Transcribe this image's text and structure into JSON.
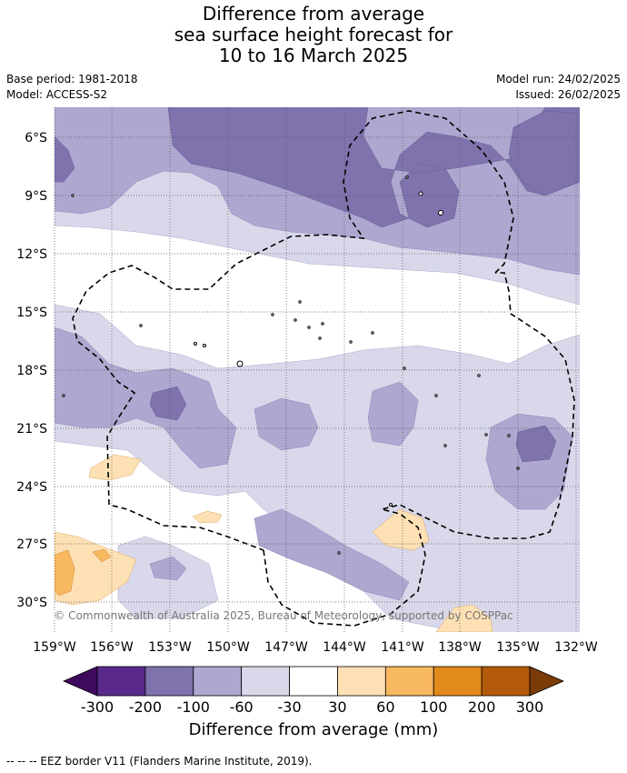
{
  "title": {
    "line1": "Difference from average",
    "line2": "sea surface height forecast for",
    "line3": "10 to 16 March 2025"
  },
  "info": {
    "base_period": "Base period: 1981-2018",
    "model": "Model: ACCESS-S2",
    "model_run": "Model run: 24/02/2025",
    "issued": "Issued: 26/02/2025"
  },
  "map": {
    "lat_ticks": [
      "6°S",
      "9°S",
      "12°S",
      "15°S",
      "18°S",
      "21°S",
      "24°S",
      "27°S",
      "30°S"
    ],
    "lon_ticks": [
      "159°W",
      "156°W",
      "153°W",
      "150°W",
      "147°W",
      "144°W",
      "141°W",
      "138°W",
      "135°W",
      "132°W"
    ],
    "copyright": "© Commonwealth of Australia 2025, Bureau of Meteorology, supported by COSPPac",
    "colors": {
      "grid": "#555555",
      "ocean_zero": "#ffffff",
      "eez": "#000000"
    }
  },
  "colorbar": {
    "title": "Difference from average (mm)",
    "ticks": [
      "-300",
      "-200",
      "-100",
      "-60",
      "-30",
      "30",
      "60",
      "100",
      "200",
      "300"
    ],
    "colors": [
      "#3f0a5e",
      "#5a2a8a",
      "#7f72ad",
      "#aea8d0",
      "#d8d8ea",
      "#ffffff",
      "#fde0b4",
      "#f8b860",
      "#e38a1c",
      "#b35a0a",
      "#7a3b06"
    ]
  },
  "footer": "-- -- -- EEZ border V11 (Flanders Marine Institute, 2019)."
}
